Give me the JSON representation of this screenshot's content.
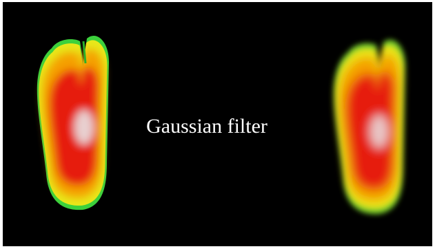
{
  "label": "Gaussian filter"
}
